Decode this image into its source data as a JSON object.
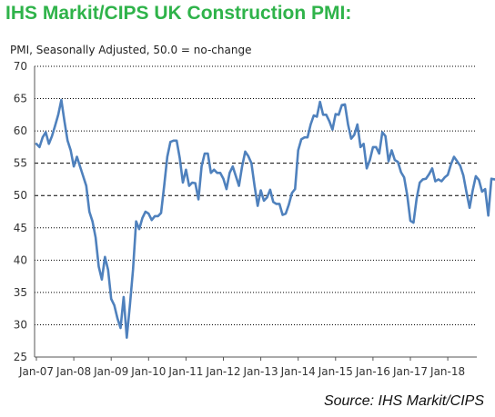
{
  "title": "IHS Markit/CIPS UK Construction PMI:",
  "subtitle": "PMI, Seasonally Adjusted, 50.0 = no-change",
  "source": "Source: IHS Markit/CIPS",
  "colors": {
    "title": "#2fb34a",
    "line": "#4f81bd",
    "grid": "#000000"
  },
  "chart_data": {
    "type": "line",
    "title": "IHS Markit/CIPS UK Construction PMI:",
    "ylabel": "",
    "xlabel": "",
    "ylim": [
      25,
      70
    ],
    "yticks": [
      25,
      30,
      35,
      40,
      45,
      50,
      55,
      60,
      65,
      70
    ],
    "grid": "horizontal dashed at 55 and 50, dotted elsewhere",
    "x_tick_labels": [
      "Jan-07",
      "Jan-08",
      "Jan-09",
      "Jan-10",
      "Jan-11",
      "Jan-12",
      "Jan-13",
      "Jan-14",
      "Jan-15",
      "Jan-16",
      "Jan-17",
      "Jan-18"
    ],
    "x_start": "Jan-07",
    "series": [
      {
        "name": "",
        "values": [
          58,
          57.5,
          59,
          59.8,
          58,
          59.2,
          60.8,
          62.5,
          64.8,
          61.5,
          58.5,
          57,
          54.5,
          56,
          54.5,
          53,
          51.5,
          47.5,
          46,
          43.5,
          39,
          37,
          40.5,
          38.5,
          34,
          33,
          31,
          29.5,
          34.3,
          28,
          33,
          38.5,
          46,
          44.8,
          46.5,
          47.5,
          47.2,
          46.2,
          46.8,
          46.8,
          47.3,
          51.5,
          56,
          58.3,
          58.5,
          58.5,
          55.8,
          52,
          54,
          51.5,
          52,
          51.9,
          49.4,
          54.5,
          56.5,
          56.5,
          53.5,
          54,
          53.5,
          53.5,
          52.6,
          51,
          53.5,
          54.5,
          53,
          51.5,
          54.5,
          56.8,
          56.1,
          55,
          51.5,
          48.4,
          50.8,
          49.2,
          49.7,
          50.9,
          49,
          48.7,
          48.7,
          47,
          47.2,
          48.6,
          50.4,
          51,
          57,
          58.7,
          59,
          59,
          61,
          62.4,
          62.2,
          64.5,
          62.5,
          62.5,
          61.5,
          60.2,
          62.6,
          62.5,
          64,
          64.1,
          61,
          58.8,
          59.4,
          61,
          57.5,
          58,
          54.2,
          55.5,
          57.5,
          57.5,
          56.5,
          59.8,
          59.2,
          55.3,
          57,
          55.5,
          55.2,
          53.6,
          52.8,
          50,
          46.1,
          45.8,
          49.5,
          52,
          52.5,
          52.6,
          53.3,
          54.2,
          52.2,
          52.5,
          52.2,
          52.8,
          53.2,
          54.8,
          56,
          55.3,
          54.6,
          53.1,
          50.5,
          48.1,
          50.8,
          53,
          52.4,
          50.6,
          51,
          46.9,
          52.6,
          52.5,
          52.5,
          53.8,
          55.8,
          52.9
        ]
      }
    ]
  }
}
